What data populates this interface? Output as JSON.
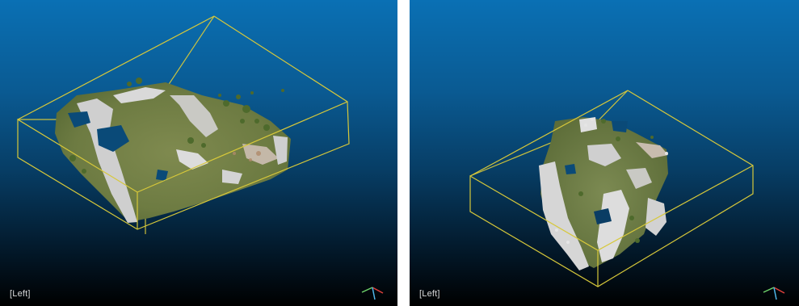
{
  "viewports": [
    {
      "id": "left",
      "label": "[Left]"
    },
    {
      "id": "right",
      "label": "[Left]"
    }
  ],
  "colors": {
    "background_top": "#0a70b4",
    "background_bottom": "#000000",
    "bounding_box": "#d7c83a",
    "label_text": "#d8d8d8",
    "axis_x": "#e0413b",
    "axis_y": "#6fd36a",
    "axis_z": "#4fb6e8"
  }
}
